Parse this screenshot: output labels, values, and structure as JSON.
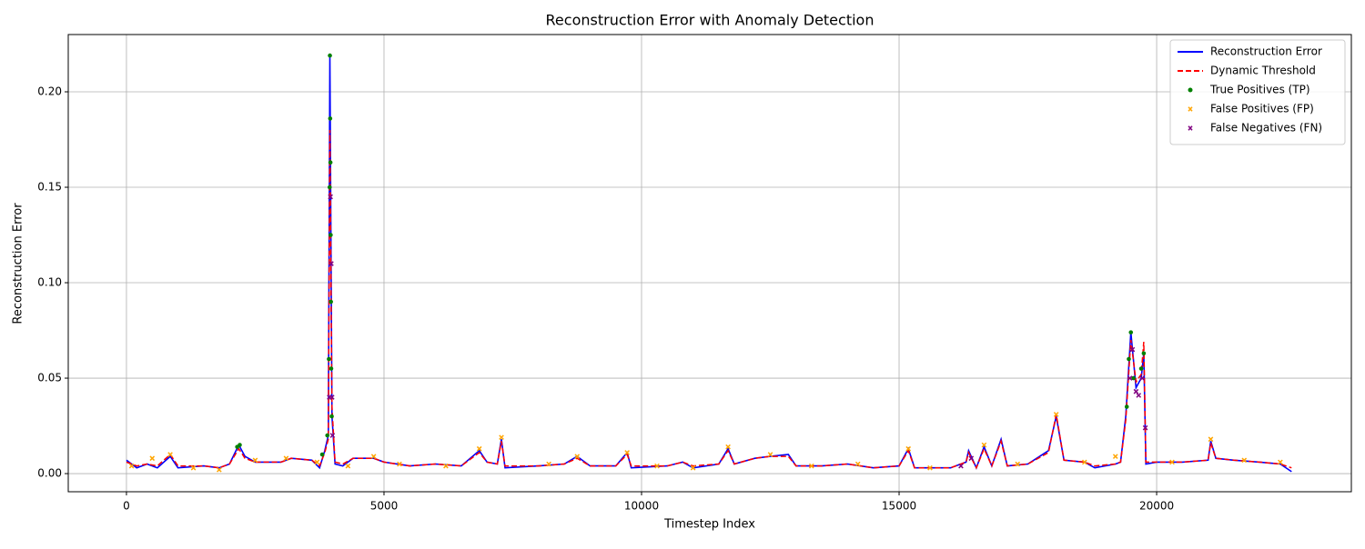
{
  "chart_data": {
    "type": "line",
    "title": "Reconstruction Error with Anomaly Detection",
    "xlabel": "Timestep Index",
    "ylabel": "Reconstruction Error",
    "xlim": [
      -1130,
      23780
    ],
    "ylim": [
      -0.0095,
      0.23
    ],
    "xticks": [
      0,
      5000,
      10000,
      15000,
      20000
    ],
    "yticks": [
      {
        "value": 0,
        "label": "0.00"
      },
      {
        "value": 0.05,
        "label": "0.05"
      },
      {
        "value": 0.1,
        "label": "0.10"
      },
      {
        "value": 0.15,
        "label": "0.15"
      },
      {
        "value": 0.2,
        "label": "0.20"
      }
    ],
    "grid": true,
    "legend": "upper right",
    "series": [
      {
        "name": "Reconstruction Error",
        "color": "#0000ff",
        "style": "solid",
        "x": [
          0,
          200,
          400,
          600,
          850,
          1000,
          1500,
          1800,
          2000,
          2180,
          2300,
          2500,
          3000,
          3200,
          3600,
          3750,
          3850,
          3920,
          3950,
          3970,
          3990,
          4050,
          4200,
          4400,
          4800,
          5000,
          5500,
          6000,
          6500,
          6850,
          7000,
          7200,
          7280,
          7350,
          8000,
          8500,
          8750,
          9000,
          9500,
          9720,
          9800,
          10500,
          10800,
          11000,
          11500,
          11680,
          11800,
          12200,
          12500,
          12850,
          13000,
          13500,
          14000,
          14500,
          15000,
          15180,
          15300,
          16000,
          16300,
          16350,
          16500,
          16650,
          16800,
          16980,
          17100,
          17500,
          17900,
          18050,
          18200,
          18600,
          18800,
          19200,
          19300,
          19400,
          19500,
          19600,
          19700,
          19750,
          19790,
          20000,
          20500,
          21000,
          21050,
          21150,
          21500,
          22000,
          22400,
          22620
        ],
        "values": [
          0.007,
          0.003,
          0.005,
          0.003,
          0.009,
          0.003,
          0.004,
          0.003,
          0.005,
          0.015,
          0.009,
          0.006,
          0.006,
          0.008,
          0.007,
          0.003,
          0.012,
          0.02,
          0.219,
          0.12,
          0.03,
          0.005,
          0.004,
          0.008,
          0.008,
          0.006,
          0.004,
          0.005,
          0.004,
          0.012,
          0.006,
          0.005,
          0.018,
          0.003,
          0.004,
          0.005,
          0.009,
          0.004,
          0.004,
          0.011,
          0.003,
          0.004,
          0.006,
          0.003,
          0.005,
          0.013,
          0.005,
          0.008,
          0.009,
          0.01,
          0.004,
          0.004,
          0.005,
          0.003,
          0.004,
          0.013,
          0.003,
          0.003,
          0.006,
          0.012,
          0.003,
          0.014,
          0.004,
          0.018,
          0.004,
          0.005,
          0.012,
          0.03,
          0.007,
          0.006,
          0.003,
          0.005,
          0.006,
          0.03,
          0.074,
          0.045,
          0.05,
          0.063,
          0.005,
          0.006,
          0.006,
          0.007,
          0.017,
          0.008,
          0.007,
          0.006,
          0.005,
          0.001
        ]
      },
      {
        "name": "Dynamic Threshold",
        "color": "#ff0000",
        "style": "dashed",
        "x": [
          0,
          200,
          400,
          600,
          850,
          1000,
          1500,
          1800,
          2000,
          2180,
          2300,
          2500,
          3000,
          3200,
          3600,
          3750,
          3850,
          3920,
          3950,
          3970,
          3990,
          4050,
          4200,
          4400,
          4800,
          5000,
          5500,
          6000,
          6500,
          6850,
          7000,
          7200,
          7280,
          7350,
          8000,
          8500,
          8750,
          9000,
          9500,
          9720,
          9800,
          10500,
          10800,
          11000,
          11500,
          11680,
          11800,
          12200,
          12500,
          12850,
          13000,
          13500,
          14000,
          14500,
          15000,
          15180,
          15300,
          16000,
          16300,
          16350,
          16500,
          16650,
          16800,
          16980,
          17100,
          17500,
          17900,
          18050,
          18200,
          18600,
          18800,
          19200,
          19300,
          19400,
          19500,
          19600,
          19700,
          19750,
          19790,
          20000,
          20500,
          21000,
          21050,
          21150,
          21500,
          22000,
          22400,
          22620
        ],
        "values": [
          0.006,
          0.004,
          0.005,
          0.004,
          0.01,
          0.004,
          0.004,
          0.003,
          0.005,
          0.013,
          0.008,
          0.006,
          0.006,
          0.008,
          0.007,
          0.004,
          0.011,
          0.018,
          0.18,
          0.1,
          0.035,
          0.006,
          0.005,
          0.008,
          0.008,
          0.006,
          0.004,
          0.005,
          0.004,
          0.011,
          0.006,
          0.005,
          0.017,
          0.004,
          0.004,
          0.005,
          0.008,
          0.004,
          0.004,
          0.01,
          0.004,
          0.004,
          0.006,
          0.004,
          0.005,
          0.012,
          0.005,
          0.008,
          0.009,
          0.009,
          0.004,
          0.004,
          0.005,
          0.003,
          0.004,
          0.012,
          0.003,
          0.003,
          0.006,
          0.011,
          0.003,
          0.013,
          0.004,
          0.017,
          0.004,
          0.005,
          0.011,
          0.031,
          0.007,
          0.006,
          0.004,
          0.005,
          0.006,
          0.028,
          0.07,
          0.048,
          0.052,
          0.069,
          0.006,
          0.006,
          0.006,
          0.007,
          0.016,
          0.008,
          0.007,
          0.006,
          0.005,
          0.003
        ]
      },
      {
        "name": "True Positives (TP)",
        "color": "#008000",
        "style": "dot",
        "x": [
          2150,
          2200,
          3800,
          3900,
          3930,
          3945,
          3950,
          3955,
          3960,
          3965,
          3970,
          3975,
          3985,
          19420,
          19460,
          19500,
          19550,
          19700,
          19750
        ],
        "values": [
          0.014,
          0.015,
          0.01,
          0.02,
          0.06,
          0.15,
          0.219,
          0.186,
          0.163,
          0.125,
          0.09,
          0.055,
          0.03,
          0.035,
          0.06,
          0.074,
          0.05,
          0.055,
          0.063
        ]
      },
      {
        "name": "False Positives (FP)",
        "color": "#ffa500",
        "style": "x",
        "x": [
          100,
          500,
          850,
          1300,
          1800,
          2500,
          3100,
          3700,
          4300,
          4800,
          5300,
          6200,
          6850,
          7280,
          8200,
          8750,
          9720,
          10300,
          11000,
          11680,
          12500,
          13300,
          14200,
          15180,
          15600,
          16650,
          17300,
          18050,
          18600,
          19200,
          20300,
          21050,
          21700,
          22400
        ],
        "values": [
          0.004,
          0.008,
          0.01,
          0.003,
          0.002,
          0.007,
          0.008,
          0.006,
          0.004,
          0.009,
          0.005,
          0.004,
          0.013,
          0.019,
          0.005,
          0.009,
          0.011,
          0.004,
          0.003,
          0.014,
          0.01,
          0.004,
          0.005,
          0.013,
          0.003,
          0.015,
          0.005,
          0.031,
          0.006,
          0.009,
          0.006,
          0.018,
          0.007,
          0.006
        ]
      },
      {
        "name": "False Negatives (FN)",
        "color": "#800080",
        "style": "x",
        "x": [
          3940,
          3960,
          3975,
          3990,
          4000,
          16200,
          16400,
          19480,
          19530,
          19600,
          19650,
          19720,
          19780
        ],
        "values": [
          0.04,
          0.145,
          0.11,
          0.04,
          0.02,
          0.004,
          0.008,
          0.05,
          0.065,
          0.043,
          0.041,
          0.05,
          0.024
        ]
      }
    ]
  }
}
